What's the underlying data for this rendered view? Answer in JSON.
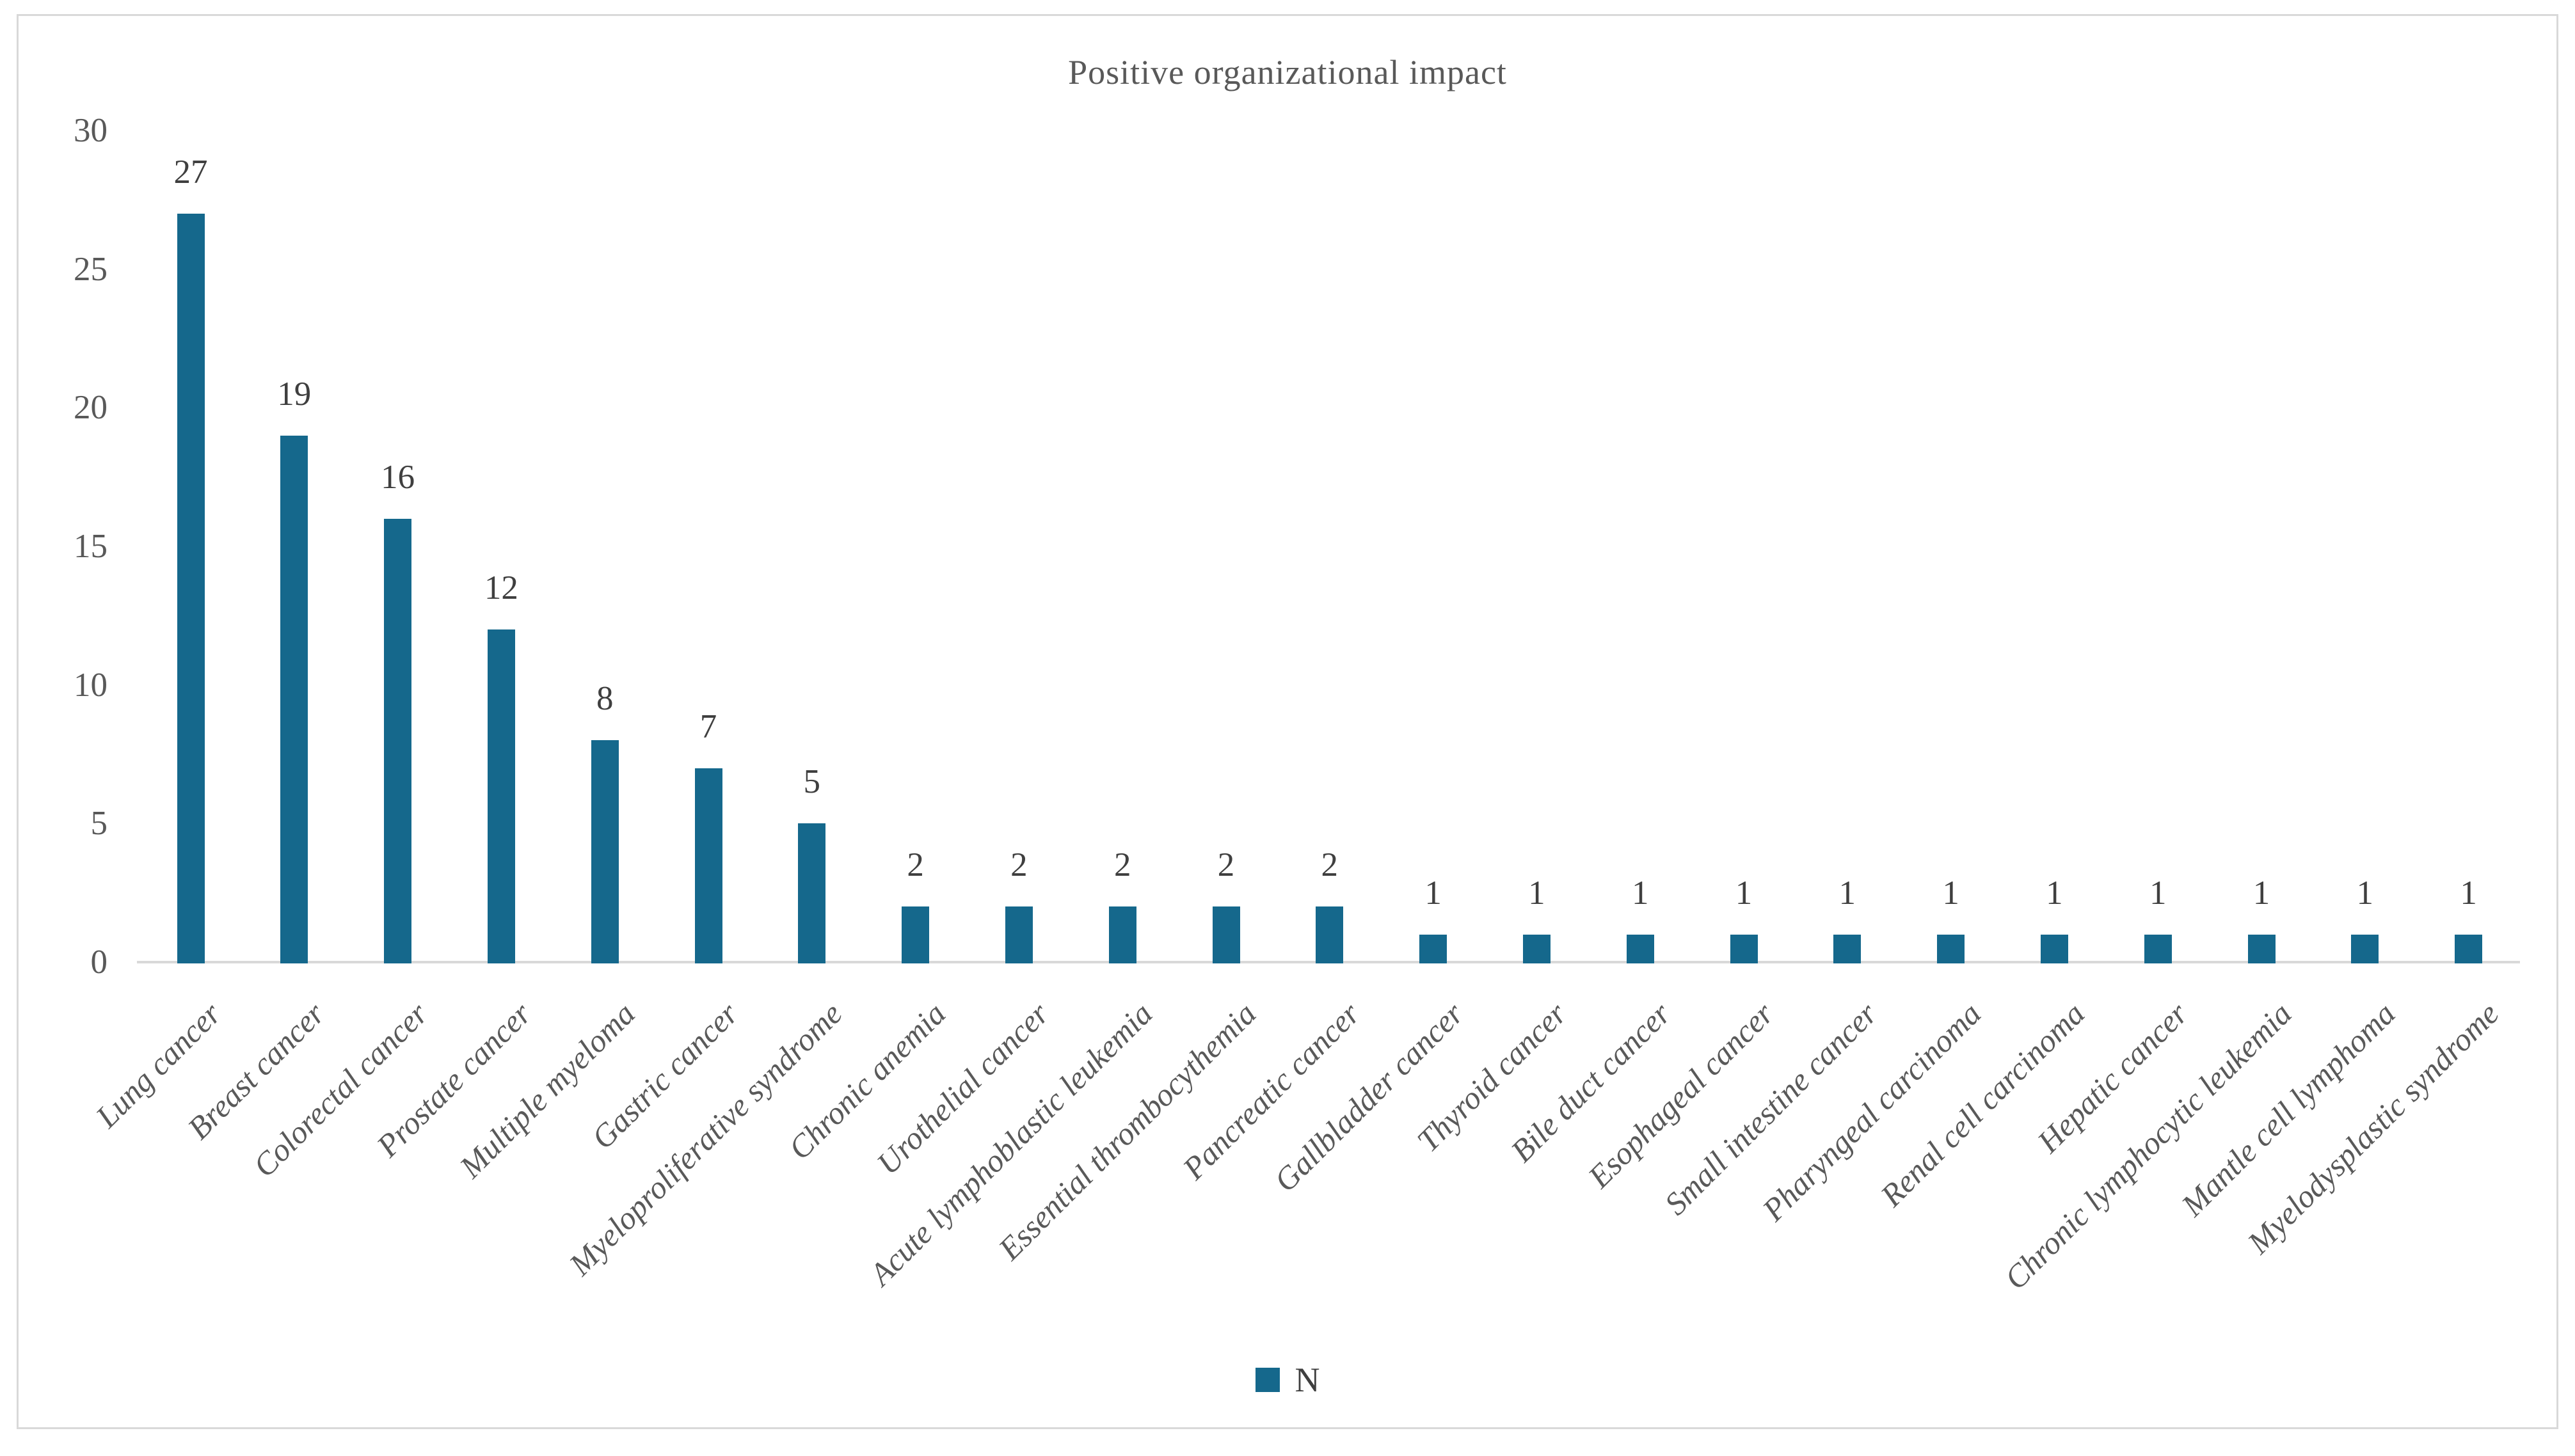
{
  "figure": {
    "background": "#ffffff",
    "border_color": "#d9d9d9"
  },
  "chart_data": {
    "type": "bar",
    "title": "Positive organizational impact",
    "categories": [
      "Lung cancer",
      "Breast cancer",
      "Colorectal cancer",
      "Prostate cancer",
      "Multiple myeloma",
      "Gastric cancer",
      "Myeloproliferative syndrome",
      "Chronic anemia",
      "Urothelial cancer",
      "Acute lymphoblastic leukemia",
      "Essential thrombocythemia",
      "Pancreatic cancer",
      "Gallbladder cancer",
      "Thyroid cancer",
      "Bile duct cancer",
      "Esophageal cancer",
      "Small intestine cancer",
      "Pharyngeal carcinoma",
      "Renal cell carcinoma",
      "Hepatic cancer",
      "Chronic lymphocytic leukemia",
      "Mantle cell lymphoma",
      "Myelodysplastic syndrome"
    ],
    "values": [
      27,
      19,
      16,
      12,
      8,
      7,
      5,
      2,
      2,
      2,
      2,
      2,
      1,
      1,
      1,
      1,
      1,
      1,
      1,
      1,
      1,
      1,
      1
    ],
    "series_name": "N",
    "xlabel": "",
    "ylabel": "",
    "ylim": [
      0,
      30
    ],
    "yticks": [
      0,
      5,
      10,
      15,
      20,
      25,
      30
    ],
    "grid": "off",
    "data_labels": "above-bars",
    "x_label_rotation_deg": 45,
    "legend_position": "bottom",
    "bar_color": "#15688c",
    "axis_line_color": "#d9d9d9",
    "title_color": "#595959",
    "tick_label_color": "#595959",
    "value_label_color": "#3f3f3f"
  },
  "legend": {
    "label": "N",
    "swatch_color": "#15688c"
  }
}
